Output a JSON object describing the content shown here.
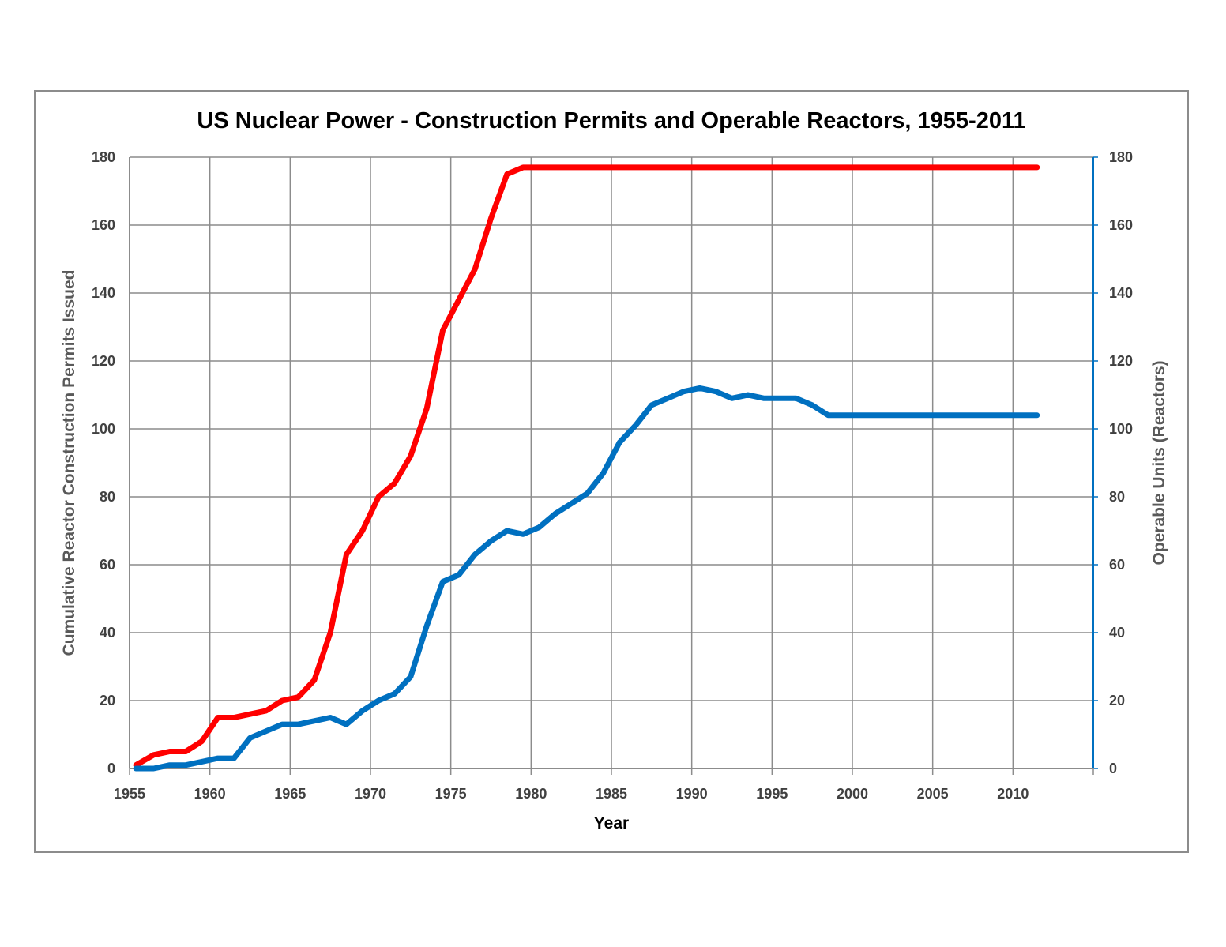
{
  "chart_data": {
    "type": "line",
    "title": "US Nuclear Power - Construction Permits and Operable Reactors, 1955-2011",
    "xlabel": "Year",
    "ylabel_left": "Cumulative Reactor Construction Permits Issued",
    "ylabel_right": "Operable Units (Reactors)",
    "xlim": [
      1955,
      2015
    ],
    "ylim": [
      0,
      180
    ],
    "x_ticks": [
      1955,
      1960,
      1965,
      1970,
      1975,
      1980,
      1985,
      1990,
      1995,
      2000,
      2005,
      2010
    ],
    "y_ticks": [
      0,
      20,
      40,
      60,
      80,
      100,
      120,
      140,
      160,
      180
    ],
    "grid": true,
    "series": [
      {
        "name": "",
        "axis": "left",
        "color": "#ff0000",
        "x": [
          1955,
          1956,
          1957,
          1958,
          1959,
          1960,
          1961,
          1962,
          1963,
          1964,
          1965,
          1966,
          1967,
          1968,
          1969,
          1970,
          1971,
          1972,
          1973,
          1974,
          1975,
          1976,
          1977,
          1978,
          1979,
          1980,
          1981,
          1982,
          1983,
          1984,
          1985,
          1986,
          1987,
          1988,
          1989,
          1990,
          1991,
          1992,
          1993,
          1994,
          1995,
          1996,
          1997,
          1998,
          1999,
          2000,
          2001,
          2002,
          2003,
          2004,
          2005,
          2006,
          2007,
          2008,
          2009,
          2010,
          2011
        ],
        "values": [
          1,
          4,
          5,
          5,
          8,
          15,
          15,
          16,
          17,
          20,
          21,
          26,
          40,
          63,
          70,
          80,
          84,
          92,
          106,
          129,
          138,
          147,
          162,
          175,
          177,
          177,
          177,
          177,
          177,
          177,
          177,
          177,
          177,
          177,
          177,
          177,
          177,
          177,
          177,
          177,
          177,
          177,
          177,
          177,
          177,
          177,
          177,
          177,
          177,
          177,
          177,
          177,
          177,
          177,
          177,
          177,
          177
        ]
      },
      {
        "name": "",
        "axis": "right",
        "color": "#0070c0",
        "x": [
          1955,
          1956,
          1957,
          1958,
          1959,
          1960,
          1961,
          1962,
          1963,
          1964,
          1965,
          1966,
          1967,
          1968,
          1969,
          1970,
          1971,
          1972,
          1973,
          1974,
          1975,
          1976,
          1977,
          1978,
          1979,
          1980,
          1981,
          1982,
          1983,
          1984,
          1985,
          1986,
          1987,
          1988,
          1989,
          1990,
          1991,
          1992,
          1993,
          1994,
          1995,
          1996,
          1997,
          1998,
          1999,
          2000,
          2001,
          2002,
          2003,
          2004,
          2005,
          2006,
          2007,
          2008,
          2009,
          2010,
          2011
        ],
        "values": [
          0,
          0,
          1,
          1,
          2,
          3,
          3,
          9,
          11,
          13,
          13,
          14,
          15,
          13,
          17,
          20,
          22,
          27,
          42,
          55,
          57,
          63,
          67,
          70,
          69,
          71,
          75,
          78,
          81,
          87,
          96,
          101,
          107,
          109,
          111,
          112,
          111,
          109,
          110,
          109,
          109,
          109,
          107,
          104,
          104,
          104,
          104,
          104,
          104,
          104,
          104,
          104,
          104,
          104,
          104,
          104,
          104
        ]
      }
    ]
  }
}
